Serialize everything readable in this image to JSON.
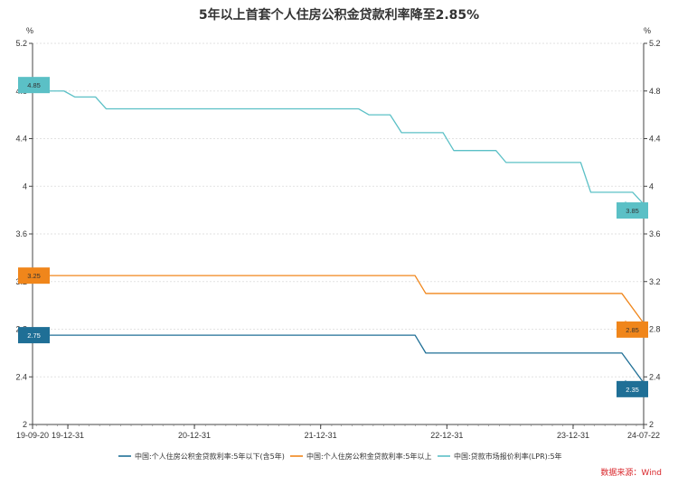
{
  "chart_data": {
    "type": "line",
    "title": "5年以上首套个人住房公积金贷款利率降至2.85%",
    "y_unit_left": "%",
    "y_unit_right": "%",
    "ylim": [
      2.0,
      5.2
    ],
    "y_ticks": [
      "2",
      "2.4",
      "2.8",
      "3.2",
      "3.6",
      "4",
      "4.4",
      "4.8",
      "5.2"
    ],
    "y_tick_values": [
      2.0,
      2.4,
      2.8,
      3.2,
      3.6,
      4.0,
      4.4,
      4.8,
      5.2
    ],
    "xlim": [
      "2019-09-20",
      "2024-07-22"
    ],
    "x_ticks": [
      {
        "label": "19-09-20",
        "date": "2019-09-20"
      },
      {
        "label": "19-12-31",
        "date": "2019-12-31"
      },
      {
        "label": "20-12-31",
        "date": "2020-12-31"
      },
      {
        "label": "21-12-31",
        "date": "2021-12-31"
      },
      {
        "label": "22-12-31",
        "date": "2022-12-31"
      },
      {
        "label": "23-12-31",
        "date": "2023-12-31"
      },
      {
        "label": "24-07-22",
        "date": "2024-07-22"
      }
    ],
    "grid": true,
    "legend_position": "bottom",
    "source": "数据来源：Wind",
    "series": [
      {
        "name": "中国:个人住房公积金贷款利率:5年以下(含5年)",
        "color": "#1f6f96",
        "end_label": "2.75",
        "last_label": "2.35",
        "points": [
          [
            "2019-09-20",
            2.75
          ],
          [
            "2022-09-30",
            2.75
          ],
          [
            "2022-10-31",
            2.6
          ],
          [
            "2024-05-20",
            2.6
          ],
          [
            "2024-07-22",
            2.35
          ]
        ]
      },
      {
        "name": "中国:个人住房公积金贷款利率:5年以上",
        "color": "#f0861b",
        "end_label": "3.25",
        "last_label": "2.85",
        "points": [
          [
            "2019-09-20",
            3.25
          ],
          [
            "2022-09-30",
            3.25
          ],
          [
            "2022-10-31",
            3.1
          ],
          [
            "2024-05-20",
            3.1
          ],
          [
            "2024-07-22",
            2.85
          ]
        ]
      },
      {
        "name": "中国:贷款市场报价利率(LPR):5年",
        "color": "#5bc0c6",
        "end_label": "4.85",
        "last_label": "3.85",
        "points": [
          [
            "2019-09-20",
            4.85
          ],
          [
            "2019-10-21",
            4.8
          ],
          [
            "2019-12-20",
            4.8
          ],
          [
            "2020-01-20",
            4.75
          ],
          [
            "2020-03-20",
            4.75
          ],
          [
            "2020-04-20",
            4.65
          ],
          [
            "2022-04-20",
            4.65
          ],
          [
            "2022-05-20",
            4.6
          ],
          [
            "2022-07-20",
            4.6
          ],
          [
            "2022-08-22",
            4.45
          ],
          [
            "2022-12-20",
            4.45
          ],
          [
            "2023-01-20",
            4.3
          ],
          [
            "2023-05-22",
            4.3
          ],
          [
            "2023-06-20",
            4.2
          ],
          [
            "2024-01-22",
            4.2
          ],
          [
            "2024-02-20",
            3.95
          ],
          [
            "2024-06-20",
            3.95
          ],
          [
            "2024-07-22",
            3.85
          ]
        ]
      }
    ]
  }
}
